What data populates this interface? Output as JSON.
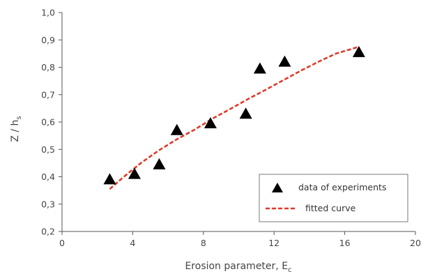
{
  "chart_data": {
    "type": "scatter",
    "xlabel": "Erosion parameter, E",
    "xlabel_sub": "c",
    "ylabel": "Z / h",
    "ylabel_sub": "s",
    "xlim": [
      0,
      20
    ],
    "ylim": [
      0.2,
      1.0
    ],
    "x_ticks": [
      0,
      4,
      8,
      12,
      16,
      20
    ],
    "x_tick_labels": [
      "0",
      "4",
      "8",
      "12",
      "16",
      "20"
    ],
    "y_ticks": [
      0.2,
      0.3,
      0.4,
      0.5,
      0.6,
      0.7,
      0.8,
      0.9,
      1.0
    ],
    "y_tick_labels": [
      "0,2",
      "0,3",
      "0,4",
      "0,5",
      "0,6",
      "0,7",
      "0,8",
      "0,9",
      "1,0"
    ],
    "grid": false,
    "legend_position": "bottom-right",
    "series": [
      {
        "name": "data of experiments",
        "kind": "scatter",
        "marker": "triangle",
        "color": "#000000",
        "x": [
          2.7,
          4.1,
          5.5,
          6.5,
          8.4,
          10.4,
          11.2,
          12.6,
          16.8
        ],
        "y": [
          0.39,
          0.41,
          0.445,
          0.57,
          0.595,
          0.63,
          0.795,
          0.82,
          0.855
        ]
      },
      {
        "name": "fitted curve",
        "kind": "line",
        "style": "dashed",
        "color": "#e03a2a",
        "x": [
          2.7,
          3.5,
          4.5,
          5.5,
          6.5,
          7.5,
          8.5,
          9.5,
          10.5,
          11.5,
          12.5,
          13.5,
          14.5,
          15.5,
          16.8
        ],
        "y": [
          0.355,
          0.4,
          0.452,
          0.497,
          0.537,
          0.572,
          0.612,
          0.647,
          0.683,
          0.717,
          0.752,
          0.787,
          0.82,
          0.85,
          0.875
        ]
      }
    ]
  }
}
